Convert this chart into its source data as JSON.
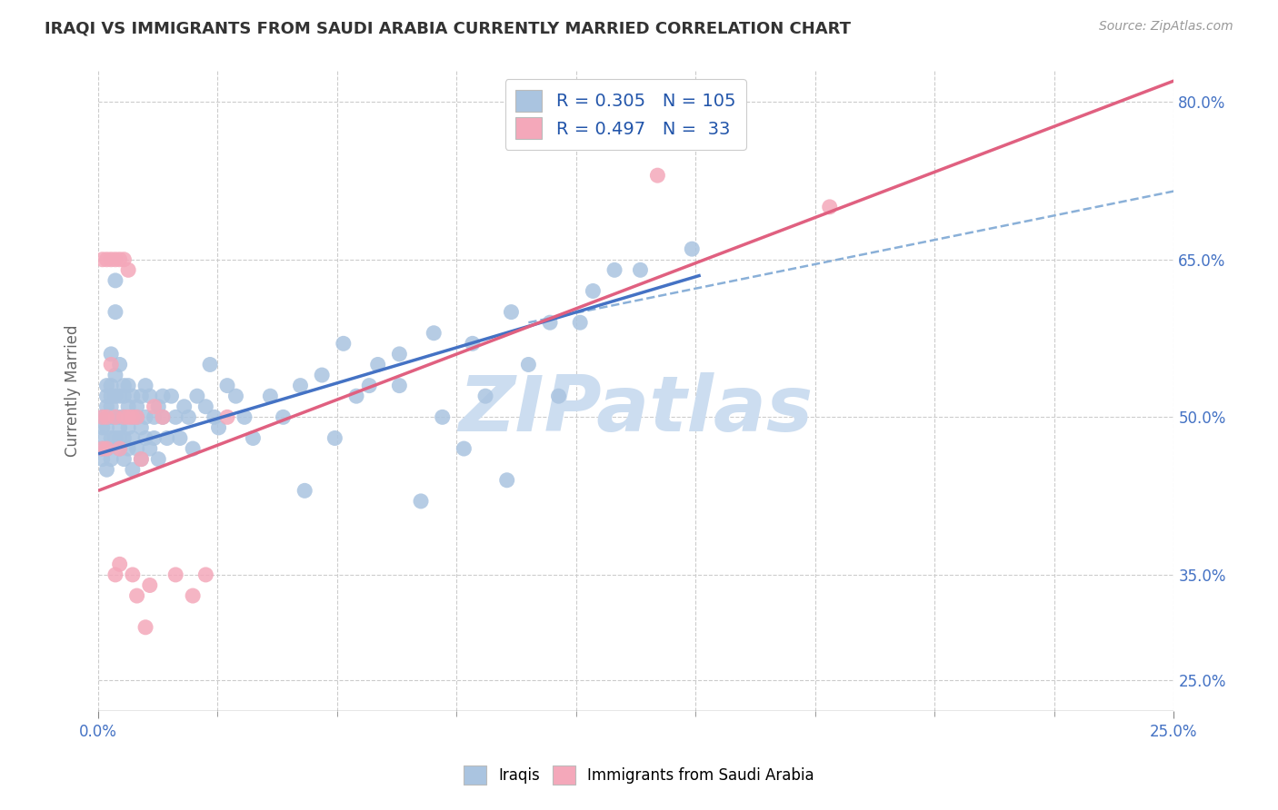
{
  "title": "IRAQI VS IMMIGRANTS FROM SAUDI ARABIA CURRENTLY MARRIED CORRELATION CHART",
  "source": "Source: ZipAtlas.com",
  "ylabel_label": "Currently Married",
  "legend_labels": [
    "Iraqis",
    "Immigrants from Saudi Arabia"
  ],
  "iraqis_R": "0.305",
  "iraqis_N": "105",
  "saudi_R": "0.497",
  "saudi_N": "33",
  "iraqis_color": "#aac4e0",
  "saudi_color": "#f4a8ba",
  "iraqis_line_color": "#4472c4",
  "saudi_line_color": "#e06080",
  "dashed_line_color": "#8ab0d8",
  "watermark": "ZIPatlas",
  "watermark_color": "#ccddf0",
  "xlim": [
    0.0,
    0.25
  ],
  "ylim": [
    0.22,
    0.83
  ],
  "x_ticks": [
    0.0,
    0.25
  ],
  "x_tick_labels": [
    "0.0%",
    "25.0%"
  ],
  "y_ticks": [
    0.25,
    0.35,
    0.5,
    0.65,
    0.8
  ],
  "y_tick_labels": [
    "25.0%",
    "35.0%",
    "50.0%",
    "65.0%",
    "80.0%"
  ],
  "iraqis_x": [
    0.001,
    0.001,
    0.001,
    0.001,
    0.001,
    0.002,
    0.002,
    0.002,
    0.002,
    0.002,
    0.002,
    0.002,
    0.003,
    0.003,
    0.003,
    0.003,
    0.003,
    0.003,
    0.003,
    0.004,
    0.004,
    0.004,
    0.004,
    0.004,
    0.004,
    0.005,
    0.005,
    0.005,
    0.005,
    0.005,
    0.005,
    0.006,
    0.006,
    0.006,
    0.006,
    0.006,
    0.007,
    0.007,
    0.007,
    0.007,
    0.008,
    0.008,
    0.008,
    0.008,
    0.009,
    0.009,
    0.009,
    0.01,
    0.01,
    0.01,
    0.011,
    0.011,
    0.011,
    0.012,
    0.012,
    0.013,
    0.013,
    0.014,
    0.014,
    0.015,
    0.015,
    0.016,
    0.017,
    0.018,
    0.019,
    0.02,
    0.021,
    0.022,
    0.023,
    0.025,
    0.026,
    0.027,
    0.028,
    0.03,
    0.032,
    0.034,
    0.036,
    0.04,
    0.043,
    0.047,
    0.052,
    0.057,
    0.063,
    0.07,
    0.078,
    0.087,
    0.096,
    0.105,
    0.115,
    0.126,
    0.138,
    0.048,
    0.055,
    0.06,
    0.065,
    0.07,
    0.075,
    0.08,
    0.085,
    0.09,
    0.095,
    0.1,
    0.107,
    0.112,
    0.12
  ],
  "iraqis_y": [
    0.48,
    0.5,
    0.49,
    0.47,
    0.46,
    0.52,
    0.5,
    0.49,
    0.47,
    0.53,
    0.51,
    0.45,
    0.53,
    0.51,
    0.56,
    0.48,
    0.5,
    0.52,
    0.46,
    0.48,
    0.5,
    0.52,
    0.54,
    0.63,
    0.6,
    0.5,
    0.52,
    0.55,
    0.48,
    0.47,
    0.49,
    0.5,
    0.53,
    0.46,
    0.52,
    0.48,
    0.51,
    0.53,
    0.49,
    0.47,
    0.5,
    0.52,
    0.45,
    0.48,
    0.51,
    0.47,
    0.5,
    0.52,
    0.49,
    0.46,
    0.5,
    0.53,
    0.48,
    0.52,
    0.47,
    0.5,
    0.48,
    0.51,
    0.46,
    0.52,
    0.5,
    0.48,
    0.52,
    0.5,
    0.48,
    0.51,
    0.5,
    0.47,
    0.52,
    0.51,
    0.55,
    0.5,
    0.49,
    0.53,
    0.52,
    0.5,
    0.48,
    0.52,
    0.5,
    0.53,
    0.54,
    0.57,
    0.53,
    0.56,
    0.58,
    0.57,
    0.6,
    0.59,
    0.62,
    0.64,
    0.66,
    0.43,
    0.48,
    0.52,
    0.55,
    0.53,
    0.42,
    0.5,
    0.47,
    0.52,
    0.44,
    0.55,
    0.52,
    0.59,
    0.64
  ],
  "saudi_x": [
    0.001,
    0.001,
    0.001,
    0.002,
    0.002,
    0.002,
    0.003,
    0.003,
    0.004,
    0.004,
    0.004,
    0.005,
    0.005,
    0.005,
    0.006,
    0.006,
    0.007,
    0.007,
    0.008,
    0.008,
    0.009,
    0.009,
    0.01,
    0.011,
    0.012,
    0.013,
    0.015,
    0.018,
    0.022,
    0.025,
    0.03,
    0.13,
    0.17
  ],
  "saudi_y": [
    0.47,
    0.5,
    0.65,
    0.47,
    0.5,
    0.65,
    0.55,
    0.65,
    0.35,
    0.5,
    0.65,
    0.36,
    0.47,
    0.65,
    0.5,
    0.65,
    0.5,
    0.64,
    0.35,
    0.5,
    0.33,
    0.5,
    0.46,
    0.3,
    0.34,
    0.51,
    0.5,
    0.35,
    0.33,
    0.35,
    0.5,
    0.73,
    0.7
  ],
  "iraqis_line_x": [
    0.0,
    0.14
  ],
  "iraqis_line_y": [
    0.465,
    0.635
  ],
  "dashed_line_x": [
    0.1,
    0.25
  ],
  "dashed_line_y": [
    0.59,
    0.715
  ],
  "saudi_line_x": [
    0.0,
    0.25
  ],
  "saudi_line_y": [
    0.43,
    0.82
  ]
}
